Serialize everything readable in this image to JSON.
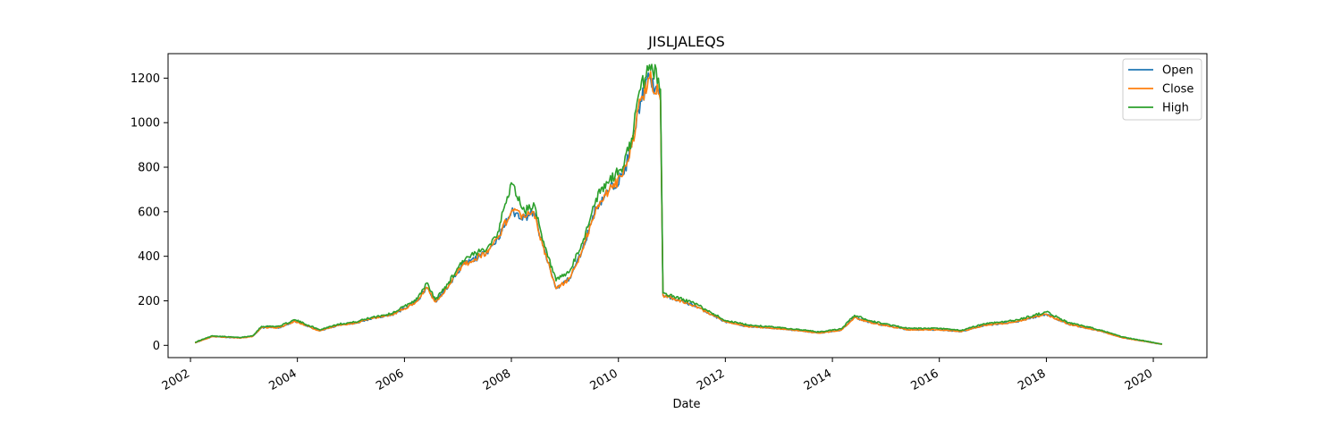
{
  "chart_data": {
    "type": "line",
    "title": "JISLJALEQS",
    "xlabel": "Date",
    "ylabel": "",
    "xlim": [
      "2001-08-01",
      "2021-01-01"
    ],
    "ylim": [
      -55,
      1310
    ],
    "x_ticks": [
      "2002",
      "2004",
      "2006",
      "2008",
      "2010",
      "2012",
      "2014",
      "2016",
      "2018",
      "2020"
    ],
    "y_ticks": [
      0,
      200,
      400,
      600,
      800,
      1000,
      1200
    ],
    "grid": false,
    "legend": "top-right",
    "series": [
      {
        "name": "Open",
        "color": "#1f77b4",
        "points": [
          [
            "2002-02-01",
            12
          ],
          [
            "2002-06-01",
            40
          ],
          [
            "2002-12-01",
            33
          ],
          [
            "2003-03-01",
            40
          ],
          [
            "2003-05-01",
            80
          ],
          [
            "2003-09-01",
            80
          ],
          [
            "2003-12-15",
            108
          ],
          [
            "2004-06-01",
            65
          ],
          [
            "2004-10-01",
            90
          ],
          [
            "2005-02-01",
            100
          ],
          [
            "2005-06-01",
            122
          ],
          [
            "2005-10-01",
            135
          ],
          [
            "2006-01-01",
            165
          ],
          [
            "2006-04-01",
            200
          ],
          [
            "2006-06-01",
            260
          ],
          [
            "2006-08-01",
            195
          ],
          [
            "2006-11-01",
            270
          ],
          [
            "2007-02-01",
            360
          ],
          [
            "2007-06-01",
            400
          ],
          [
            "2007-08-01",
            430
          ],
          [
            "2007-10-01",
            480
          ],
          [
            "2008-01-01",
            600
          ],
          [
            "2008-04-01",
            575
          ],
          [
            "2008-06-01",
            600
          ],
          [
            "2008-08-01",
            450
          ],
          [
            "2008-11-01",
            255
          ],
          [
            "2009-02-01",
            300
          ],
          [
            "2009-05-01",
            430
          ],
          [
            "2009-08-01",
            620
          ],
          [
            "2009-11-01",
            700
          ],
          [
            "2010-02-01",
            765
          ],
          [
            "2010-04-01",
            890
          ],
          [
            "2010-06-01",
            1100
          ],
          [
            "2010-08-01",
            1200
          ],
          [
            "2010-10-01",
            1130
          ],
          [
            "2010-10-15",
            1100
          ],
          [
            "2010-11-01",
            225
          ],
          [
            "2011-06-01",
            180
          ],
          [
            "2012-01-01",
            105
          ],
          [
            "2012-06-01",
            85
          ],
          [
            "2013-01-01",
            75
          ],
          [
            "2013-06-01",
            65
          ],
          [
            "2013-10-01",
            55
          ],
          [
            "2014-03-01",
            68
          ],
          [
            "2014-06-01",
            125
          ],
          [
            "2014-10-01",
            100
          ],
          [
            "2015-06-01",
            70
          ],
          [
            "2016-01-01",
            70
          ],
          [
            "2016-06-01",
            62
          ],
          [
            "2016-11-01",
            90
          ],
          [
            "2017-06-01",
            105
          ],
          [
            "2018-01-01",
            140
          ],
          [
            "2018-06-01",
            95
          ],
          [
            "2019-01-01",
            65
          ],
          [
            "2019-06-01",
            35
          ],
          [
            "2020-03-01",
            5
          ]
        ]
      },
      {
        "name": "Close",
        "color": "#ff7f0e",
        "points": [
          [
            "2002-02-01",
            12
          ],
          [
            "2002-06-01",
            40
          ],
          [
            "2002-12-01",
            33
          ],
          [
            "2003-03-01",
            40
          ],
          [
            "2003-05-01",
            80
          ],
          [
            "2003-09-01",
            80
          ],
          [
            "2003-12-15",
            108
          ],
          [
            "2004-06-01",
            65
          ],
          [
            "2004-10-01",
            90
          ],
          [
            "2005-02-01",
            100
          ],
          [
            "2005-06-01",
            122
          ],
          [
            "2005-10-01",
            135
          ],
          [
            "2006-01-01",
            165
          ],
          [
            "2006-04-01",
            200
          ],
          [
            "2006-06-01",
            260
          ],
          [
            "2006-08-01",
            195
          ],
          [
            "2006-11-01",
            270
          ],
          [
            "2007-02-01",
            360
          ],
          [
            "2007-06-01",
            400
          ],
          [
            "2007-08-01",
            430
          ],
          [
            "2007-10-01",
            480
          ],
          [
            "2008-01-01",
            600
          ],
          [
            "2008-04-01",
            575
          ],
          [
            "2008-06-01",
            600
          ],
          [
            "2008-08-01",
            450
          ],
          [
            "2008-11-01",
            255
          ],
          [
            "2009-02-01",
            300
          ],
          [
            "2009-05-01",
            430
          ],
          [
            "2009-08-01",
            620
          ],
          [
            "2009-11-01",
            700
          ],
          [
            "2010-02-01",
            765
          ],
          [
            "2010-04-01",
            890
          ],
          [
            "2010-06-01",
            1100
          ],
          [
            "2010-08-01",
            1200
          ],
          [
            "2010-10-01",
            1130
          ],
          [
            "2010-10-15",
            1100
          ],
          [
            "2010-11-01",
            225
          ],
          [
            "2011-06-01",
            180
          ],
          [
            "2012-01-01",
            105
          ],
          [
            "2012-06-01",
            85
          ],
          [
            "2013-01-01",
            75
          ],
          [
            "2013-06-01",
            65
          ],
          [
            "2013-10-01",
            55
          ],
          [
            "2014-03-01",
            68
          ],
          [
            "2014-06-01",
            125
          ],
          [
            "2014-10-01",
            100
          ],
          [
            "2015-06-01",
            70
          ],
          [
            "2016-01-01",
            70
          ],
          [
            "2016-06-01",
            62
          ],
          [
            "2016-11-01",
            90
          ],
          [
            "2017-06-01",
            105
          ],
          [
            "2018-01-01",
            140
          ],
          [
            "2018-06-01",
            95
          ],
          [
            "2019-01-01",
            65
          ],
          [
            "2019-06-01",
            35
          ],
          [
            "2020-03-01",
            5
          ]
        ]
      },
      {
        "name": "High",
        "color": "#2ca02c",
        "points": [
          [
            "2002-02-01",
            14
          ],
          [
            "2002-06-01",
            43
          ],
          [
            "2002-12-01",
            35
          ],
          [
            "2003-03-01",
            43
          ],
          [
            "2003-05-01",
            85
          ],
          [
            "2003-09-01",
            86
          ],
          [
            "2003-12-15",
            115
          ],
          [
            "2004-06-01",
            70
          ],
          [
            "2004-10-01",
            95
          ],
          [
            "2005-02-01",
            105
          ],
          [
            "2005-06-01",
            128
          ],
          [
            "2005-10-01",
            142
          ],
          [
            "2006-01-01",
            175
          ],
          [
            "2006-04-01",
            210
          ],
          [
            "2006-06-01",
            280
          ],
          [
            "2006-08-01",
            205
          ],
          [
            "2006-11-01",
            285
          ],
          [
            "2007-02-01",
            380
          ],
          [
            "2007-06-01",
            420
          ],
          [
            "2007-08-01",
            450
          ],
          [
            "2007-10-01",
            510
          ],
          [
            "2008-01-01",
            730
          ],
          [
            "2008-04-01",
            600
          ],
          [
            "2008-06-01",
            640
          ],
          [
            "2008-08-01",
            470
          ],
          [
            "2008-11-01",
            290
          ],
          [
            "2009-02-01",
            330
          ],
          [
            "2009-05-01",
            460
          ],
          [
            "2009-08-01",
            660
          ],
          [
            "2009-11-01",
            740
          ],
          [
            "2010-02-01",
            800
          ],
          [
            "2010-04-01",
            930
          ],
          [
            "2010-06-01",
            1150
          ],
          [
            "2010-08-01",
            1260
          ],
          [
            "2010-10-01",
            1200
          ],
          [
            "2010-10-15",
            1150
          ],
          [
            "2010-11-01",
            235
          ],
          [
            "2011-06-01",
            190
          ],
          [
            "2012-01-01",
            112
          ],
          [
            "2012-06-01",
            92
          ],
          [
            "2013-01-01",
            80
          ],
          [
            "2013-06-01",
            70
          ],
          [
            "2013-10-01",
            60
          ],
          [
            "2014-03-01",
            74
          ],
          [
            "2014-06-01",
            135
          ],
          [
            "2014-10-01",
            108
          ],
          [
            "2015-06-01",
            76
          ],
          [
            "2016-01-01",
            76
          ],
          [
            "2016-06-01",
            67
          ],
          [
            "2016-11-01",
            97
          ],
          [
            "2017-06-01",
            112
          ],
          [
            "2018-01-01",
            150
          ],
          [
            "2018-06-01",
            102
          ],
          [
            "2019-01-01",
            70
          ],
          [
            "2019-06-01",
            38
          ],
          [
            "2020-03-01",
            6
          ]
        ]
      }
    ]
  }
}
